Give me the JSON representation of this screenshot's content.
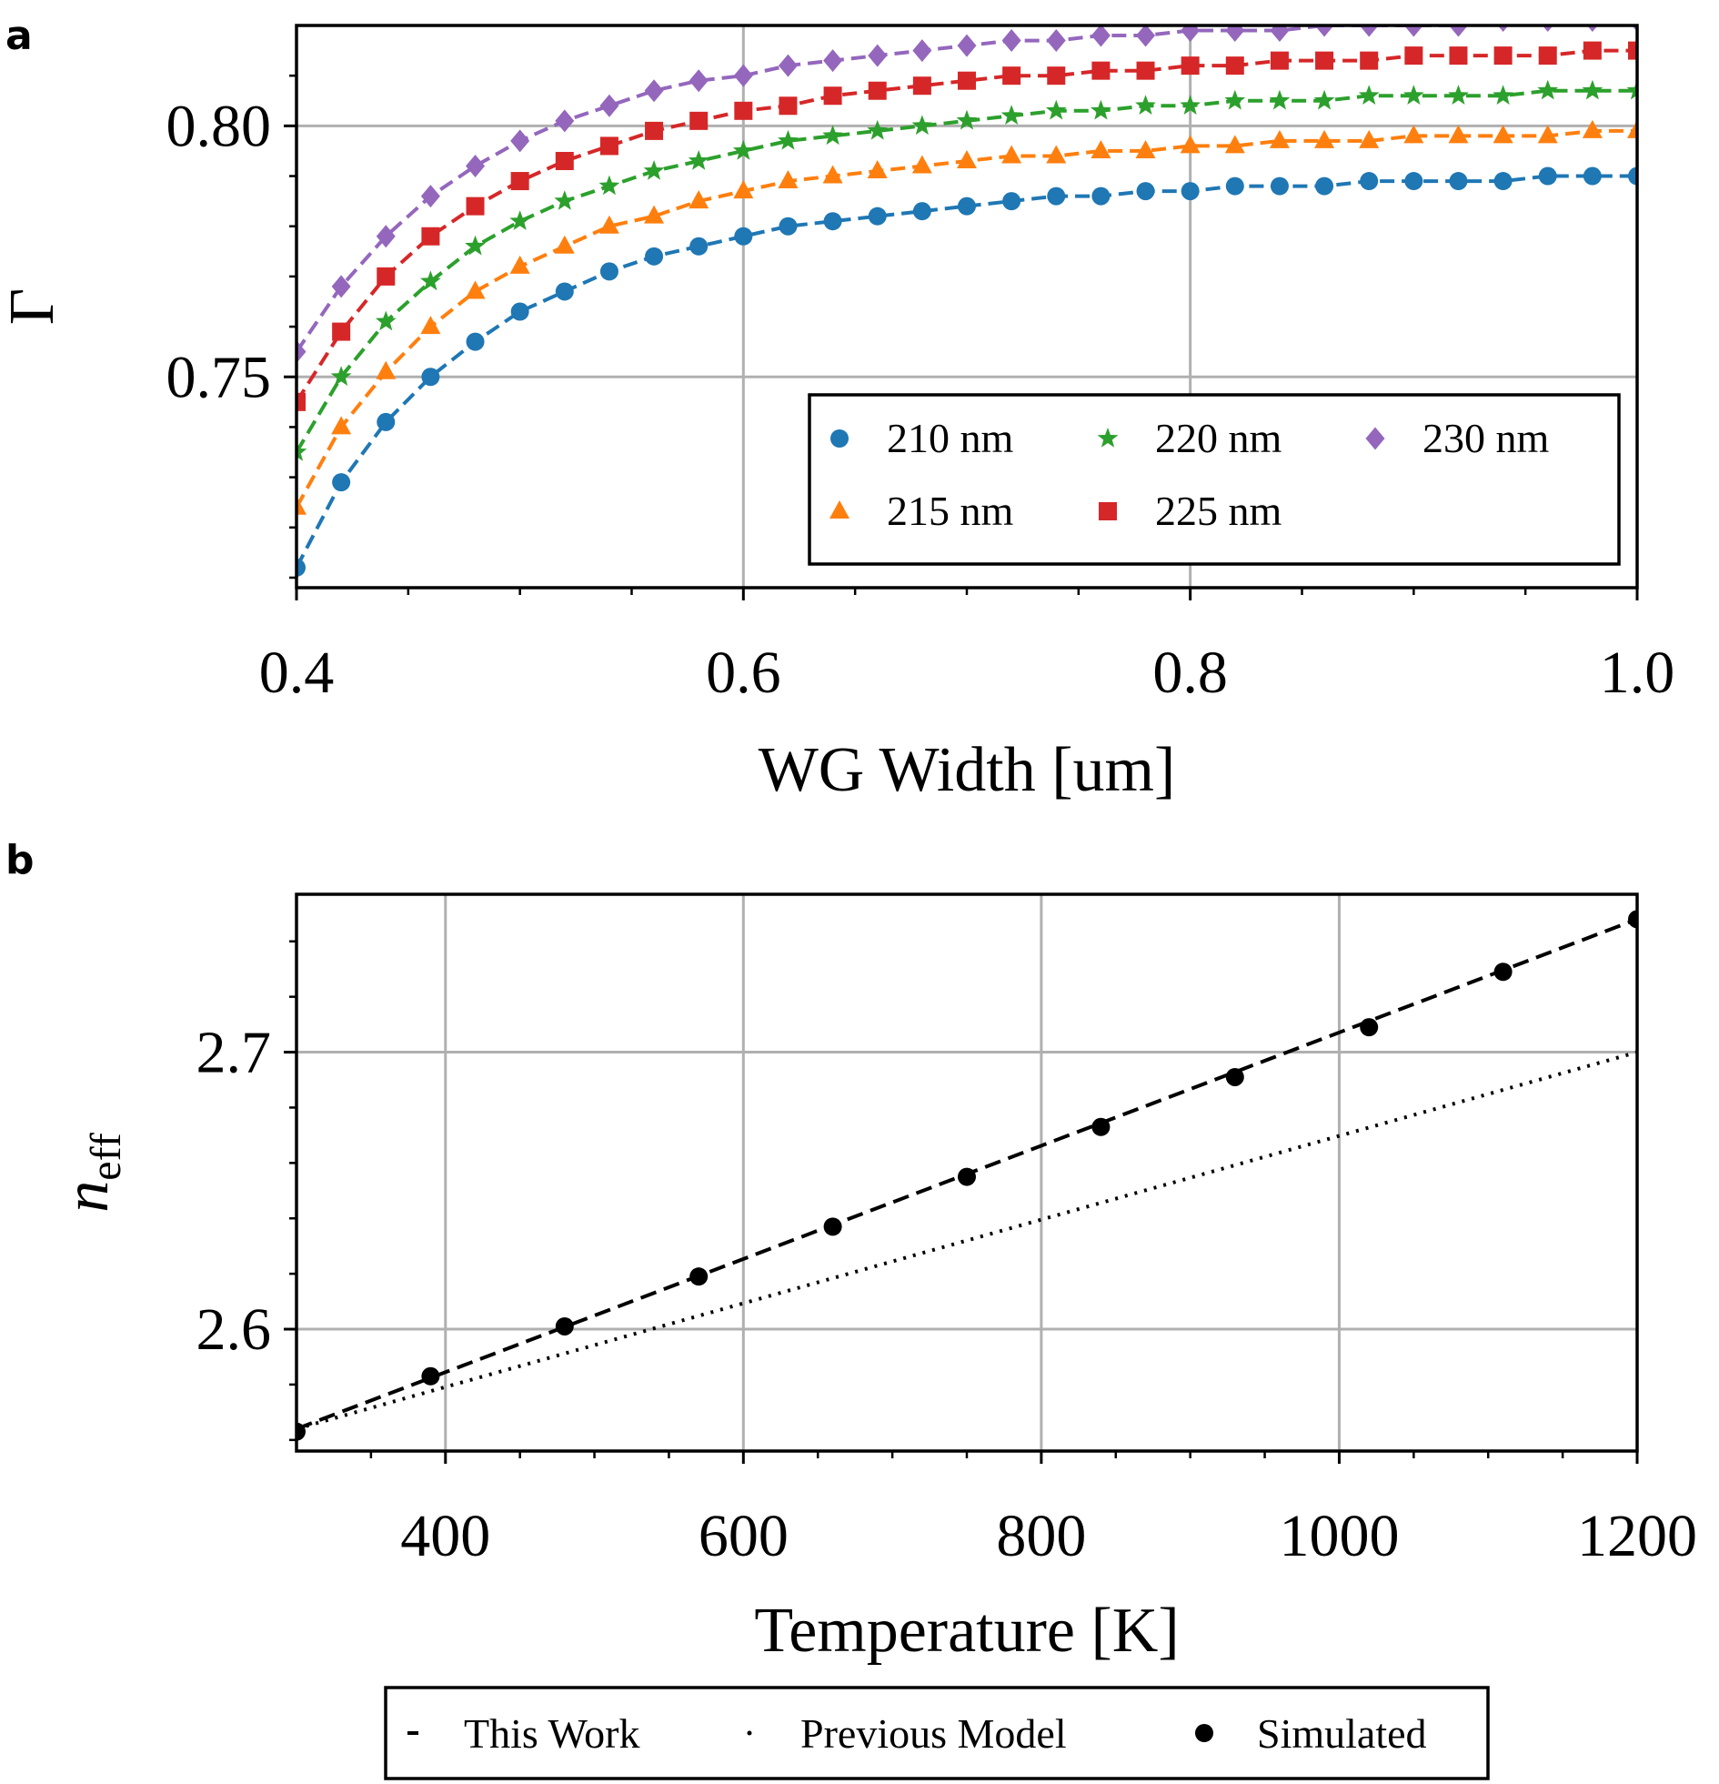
{
  "chart_data": [
    {
      "panel": "a",
      "type": "line",
      "xlabel": "WG Width [um]",
      "ylabel": "Γ",
      "xlim": [
        0.4,
        1.0
      ],
      "ylim": [
        0.708,
        0.82
      ],
      "xticks": [
        "0.4",
        "0.6",
        "0.8",
        "1.0"
      ],
      "yticks": [
        "0.75",
        "0.80"
      ],
      "grid": true,
      "legend_position": "lower-right",
      "x": [
        0.4,
        0.42,
        0.44,
        0.46,
        0.48,
        0.5,
        0.52,
        0.54,
        0.56,
        0.58,
        0.6,
        0.62,
        0.64,
        0.66,
        0.68,
        0.7,
        0.72,
        0.74,
        0.76,
        0.78,
        0.8,
        0.82,
        0.84,
        0.86,
        0.88,
        0.9,
        0.92,
        0.94,
        0.96,
        0.98,
        1.0
      ],
      "series": [
        {
          "name": "210 nm",
          "marker": "circle",
          "color": "#1f77b4",
          "values": [
            0.712,
            0.729,
            0.741,
            0.75,
            0.757,
            0.763,
            0.767,
            0.771,
            0.774,
            0.776,
            0.778,
            0.78,
            0.781,
            0.782,
            0.783,
            0.784,
            0.785,
            0.786,
            0.786,
            0.787,
            0.787,
            0.788,
            0.788,
            0.788,
            0.789,
            0.789,
            0.789,
            0.789,
            0.79,
            0.79,
            0.79
          ]
        },
        {
          "name": "215 nm",
          "marker": "triangle",
          "color": "#ff7f0e",
          "values": [
            0.724,
            0.74,
            0.751,
            0.76,
            0.767,
            0.772,
            0.776,
            0.78,
            0.782,
            0.785,
            0.787,
            0.789,
            0.79,
            0.791,
            0.792,
            0.793,
            0.794,
            0.794,
            0.795,
            0.795,
            0.796,
            0.796,
            0.797,
            0.797,
            0.797,
            0.798,
            0.798,
            0.798,
            0.798,
            0.799,
            0.799
          ]
        },
        {
          "name": "220 nm",
          "marker": "star",
          "color": "#2ca02c",
          "values": [
            0.735,
            0.75,
            0.761,
            0.769,
            0.776,
            0.781,
            0.785,
            0.788,
            0.791,
            0.793,
            0.795,
            0.797,
            0.798,
            0.799,
            0.8,
            0.801,
            0.802,
            0.803,
            0.803,
            0.804,
            0.804,
            0.805,
            0.805,
            0.805,
            0.806,
            0.806,
            0.806,
            0.806,
            0.807,
            0.807,
            0.807
          ]
        },
        {
          "name": "225 nm",
          "marker": "square",
          "color": "#d62728",
          "values": [
            0.745,
            0.759,
            0.77,
            0.778,
            0.784,
            0.789,
            0.793,
            0.796,
            0.799,
            0.801,
            0.803,
            0.804,
            0.806,
            0.807,
            0.808,
            0.809,
            0.81,
            0.81,
            0.811,
            0.811,
            0.812,
            0.812,
            0.813,
            0.813,
            0.813,
            0.814,
            0.814,
            0.814,
            0.814,
            0.815,
            0.815
          ]
        },
        {
          "name": "230 nm",
          "marker": "diamond",
          "color": "#9467bd",
          "values": [
            0.755,
            0.768,
            0.778,
            0.786,
            0.792,
            0.797,
            0.801,
            0.804,
            0.807,
            0.809,
            0.81,
            0.812,
            0.813,
            0.814,
            0.815,
            0.816,
            0.817,
            0.817,
            0.818,
            0.818,
            0.819,
            0.819,
            0.819,
            0.82,
            0.82,
            0.82,
            0.82,
            0.821,
            0.821,
            0.821,
            0.821
          ]
        }
      ]
    },
    {
      "panel": "b",
      "type": "line",
      "xlabel": "Temperature [K]",
      "ylabel": "n",
      "ylabel_subscript": "eff",
      "xlim": [
        300,
        1200
      ],
      "ylim": [
        2.556,
        2.757
      ],
      "xticks": [
        "400",
        "600",
        "800",
        "1000",
        "1200"
      ],
      "yticks": [
        "2.6",
        "2.7"
      ],
      "grid": true,
      "legend_position": "below plot",
      "series": [
        {
          "name": "This Work",
          "style": "dashed",
          "color": "#000000",
          "x": [
            300,
            1200
          ],
          "values": [
            2.564,
            2.748
          ]
        },
        {
          "name": "Previous Model",
          "style": "dotted",
          "color": "#000000",
          "x": [
            300,
            1200
          ],
          "values": [
            2.564,
            2.7
          ]
        },
        {
          "name": "Simulated",
          "style": "points",
          "color": "#000000",
          "x": [
            300,
            390,
            480,
            570,
            660,
            750,
            840,
            930,
            1020,
            1110,
            1200
          ],
          "values": [
            2.563,
            2.583,
            2.601,
            2.619,
            2.637,
            2.655,
            2.673,
            2.691,
            2.709,
            2.729,
            2.748
          ]
        }
      ]
    }
  ]
}
